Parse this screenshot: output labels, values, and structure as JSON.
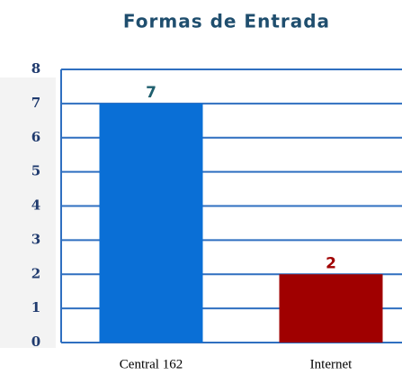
{
  "chart_data": {
    "type": "bar",
    "title": "Formas de Entrada",
    "categories": [
      "Central 162",
      "Internet"
    ],
    "values": [
      7,
      2
    ],
    "colors": [
      "#0a6fd6",
      "#a00000"
    ],
    "label_colors": [
      "#1f5f6e",
      "#a00000"
    ],
    "ylim": [
      0,
      8
    ],
    "yticks": [
      0,
      1,
      2,
      3,
      4,
      5,
      6,
      7,
      8
    ],
    "grid": true,
    "grid_color": "#2f6fc0"
  }
}
